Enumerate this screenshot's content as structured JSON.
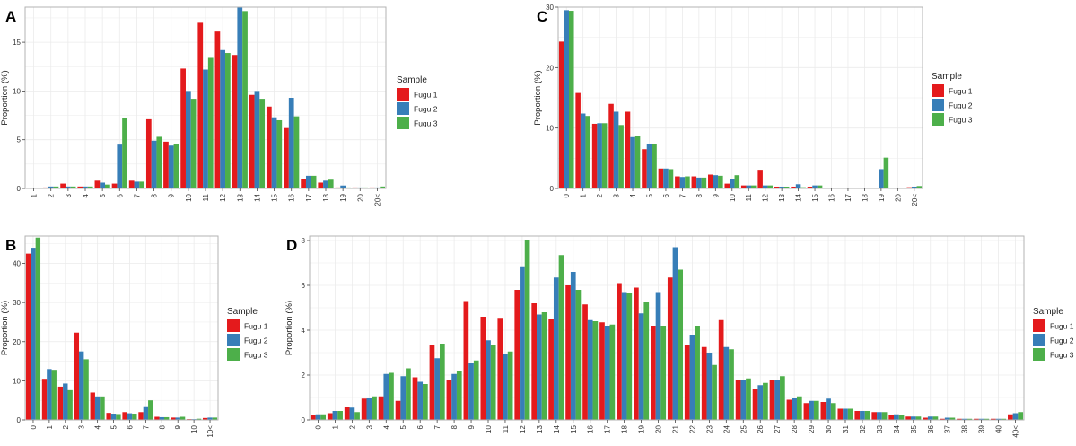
{
  "legend": {
    "title": "Sample",
    "entries": [
      "Fugu 1",
      "Fugu 2",
      "Fugu 3"
    ],
    "colors": [
      "#e41a1c",
      "#377eb8",
      "#4daf4a"
    ]
  },
  "chart_data": [
    {
      "panel": "A",
      "type": "bar",
      "ylabel": "Proportion (%)",
      "xlabel": "",
      "ylim": [
        0,
        18.6
      ],
      "yticks": [
        0,
        5,
        10,
        15
      ],
      "grid": true,
      "legend_position": "right",
      "categories": [
        "1",
        "2",
        "3",
        "4",
        "5",
        "6",
        "7",
        "8",
        "9",
        "10",
        "11",
        "12",
        "13",
        "14",
        "15",
        "16",
        "17",
        "18",
        "19",
        "20",
        "20<"
      ],
      "series": [
        {
          "name": "Fugu 1",
          "values": [
            0.05,
            0.1,
            0.5,
            0.2,
            0.8,
            0.5,
            0.8,
            7.1,
            4.8,
            12.3,
            17.0,
            16.1,
            13.7,
            9.6,
            8.4,
            6.2,
            1.0,
            0.6,
            0.1,
            0.1,
            0.1
          ]
        },
        {
          "name": "Fugu 2",
          "values": [
            0.05,
            0.2,
            0.2,
            0.2,
            0.6,
            4.5,
            0.7,
            4.9,
            4.4,
            10.0,
            12.2,
            14.2,
            18.6,
            10.0,
            7.3,
            9.3,
            1.3,
            0.8,
            0.3,
            0.1,
            0.1
          ]
        },
        {
          "name": "Fugu 3",
          "values": [
            0.05,
            0.2,
            0.2,
            0.2,
            0.4,
            7.2,
            0.7,
            5.3,
            4.6,
            9.2,
            13.4,
            13.9,
            18.2,
            9.2,
            7.0,
            7.4,
            1.3,
            0.9,
            0.1,
            0.1,
            0.2
          ]
        }
      ]
    },
    {
      "panel": "B",
      "type": "bar",
      "ylabel": "Proportion (%)",
      "xlabel": "",
      "ylim": [
        0,
        47
      ],
      "yticks": [
        0,
        10,
        20,
        30,
        40
      ],
      "grid": true,
      "legend_position": "right",
      "categories": [
        "0",
        "1",
        "2",
        "3",
        "4",
        "5",
        "6",
        "7",
        "8",
        "9",
        "10",
        "10<"
      ],
      "series": [
        {
          "name": "Fugu 1",
          "values": [
            42.5,
            10.5,
            8.5,
            22.3,
            7.0,
            1.8,
            2.0,
            2.0,
            0.8,
            0.6,
            0.2,
            0.5
          ]
        },
        {
          "name": "Fugu 2",
          "values": [
            44.0,
            13.0,
            9.3,
            17.5,
            6.0,
            1.6,
            1.7,
            3.5,
            0.7,
            0.6,
            0.2,
            0.6
          ]
        },
        {
          "name": "Fugu 3",
          "values": [
            46.6,
            12.8,
            7.6,
            15.5,
            6.0,
            1.5,
            1.6,
            5.0,
            0.7,
            0.8,
            0.3,
            0.6
          ]
        }
      ]
    },
    {
      "panel": "C",
      "type": "bar",
      "ylabel": "Proportion (%)",
      "xlabel": "",
      "ylim": [
        0,
        30
      ],
      "yticks": [
        0,
        10,
        20,
        30
      ],
      "grid": true,
      "legend_position": "right",
      "categories": [
        "0",
        "1",
        "2",
        "3",
        "4",
        "5",
        "6",
        "7",
        "8",
        "9",
        "10",
        "11",
        "12",
        "13",
        "14",
        "15",
        "16",
        "17",
        "18",
        "19",
        "20",
        "20<"
      ],
      "series": [
        {
          "name": "Fugu 1",
          "values": [
            24.3,
            15.8,
            10.7,
            14.0,
            12.7,
            6.5,
            3.3,
            2.0,
            2.0,
            2.3,
            0.8,
            0.5,
            3.1,
            0.3,
            0.3,
            0.3,
            0.1,
            0.1,
            0.1,
            0.1,
            0.1,
            0.2
          ]
        },
        {
          "name": "Fugu 2",
          "values": [
            29.5,
            12.4,
            10.8,
            12.7,
            8.5,
            7.3,
            3.3,
            1.9,
            1.8,
            2.2,
            1.6,
            0.5,
            0.5,
            0.3,
            0.7,
            0.5,
            0.1,
            0.1,
            0.1,
            3.2,
            0.1,
            0.3
          ]
        },
        {
          "name": "Fugu 3",
          "values": [
            29.4,
            12.0,
            10.8,
            10.5,
            8.7,
            7.4,
            3.2,
            2.0,
            1.8,
            2.1,
            2.2,
            0.5,
            0.5,
            0.3,
            0.2,
            0.5,
            0.1,
            0.1,
            0.1,
            5.1,
            0.1,
            0.4
          ]
        }
      ]
    },
    {
      "panel": "D",
      "type": "bar",
      "ylabel": "Proportion (%)",
      "xlabel": "",
      "ylim": [
        0,
        8.2
      ],
      "yticks": [
        0,
        2,
        4,
        6,
        8
      ],
      "grid": true,
      "legend_position": "right",
      "categories": [
        "0",
        "1",
        "2",
        "3",
        "4",
        "5",
        "6",
        "7",
        "8",
        "9",
        "10",
        "11",
        "12",
        "13",
        "14",
        "15",
        "16",
        "17",
        "18",
        "19",
        "20",
        "21",
        "22",
        "23",
        "24",
        "25",
        "26",
        "27",
        "28",
        "29",
        "30",
        "31",
        "32",
        "33",
        "34",
        "35",
        "36",
        "37",
        "38",
        "39",
        "40",
        "40<"
      ],
      "series": [
        {
          "name": "Fugu 1",
          "values": [
            0.2,
            0.3,
            0.6,
            0.95,
            1.05,
            0.85,
            1.9,
            3.35,
            1.8,
            5.3,
            4.6,
            4.55,
            5.8,
            5.2,
            4.5,
            6.0,
            5.15,
            4.35,
            6.1,
            5.9,
            4.2,
            6.35,
            3.35,
            3.25,
            4.45,
            1.8,
            1.4,
            1.8,
            0.9,
            0.75,
            0.8,
            0.5,
            0.4,
            0.35,
            0.2,
            0.15,
            0.1,
            0.05,
            0.05,
            0.05,
            0.05,
            0.25
          ]
        },
        {
          "name": "Fugu 2",
          "values": [
            0.25,
            0.4,
            0.55,
            1.0,
            2.05,
            1.95,
            1.7,
            2.75,
            2.05,
            2.55,
            3.55,
            2.95,
            6.85,
            4.7,
            6.35,
            6.6,
            4.45,
            4.2,
            5.7,
            4.75,
            5.7,
            7.7,
            3.8,
            3.0,
            3.25,
            1.8,
            1.55,
            1.8,
            1.0,
            0.85,
            0.95,
            0.5,
            0.4,
            0.35,
            0.25,
            0.15,
            0.15,
            0.1,
            0.05,
            0.05,
            0.05,
            0.3
          ]
        },
        {
          "name": "Fugu 3",
          "values": [
            0.25,
            0.4,
            0.35,
            1.05,
            2.1,
            2.3,
            1.6,
            3.4,
            2.2,
            2.65,
            3.35,
            3.05,
            8.0,
            4.8,
            7.35,
            5.8,
            4.4,
            4.25,
            5.65,
            5.25,
            4.2,
            6.7,
            4.2,
            2.45,
            3.15,
            1.85,
            1.65,
            1.95,
            1.05,
            0.85,
            0.75,
            0.5,
            0.4,
            0.35,
            0.2,
            0.15,
            0.15,
            0.1,
            0.05,
            0.05,
            0.05,
            0.35
          ]
        }
      ]
    }
  ]
}
